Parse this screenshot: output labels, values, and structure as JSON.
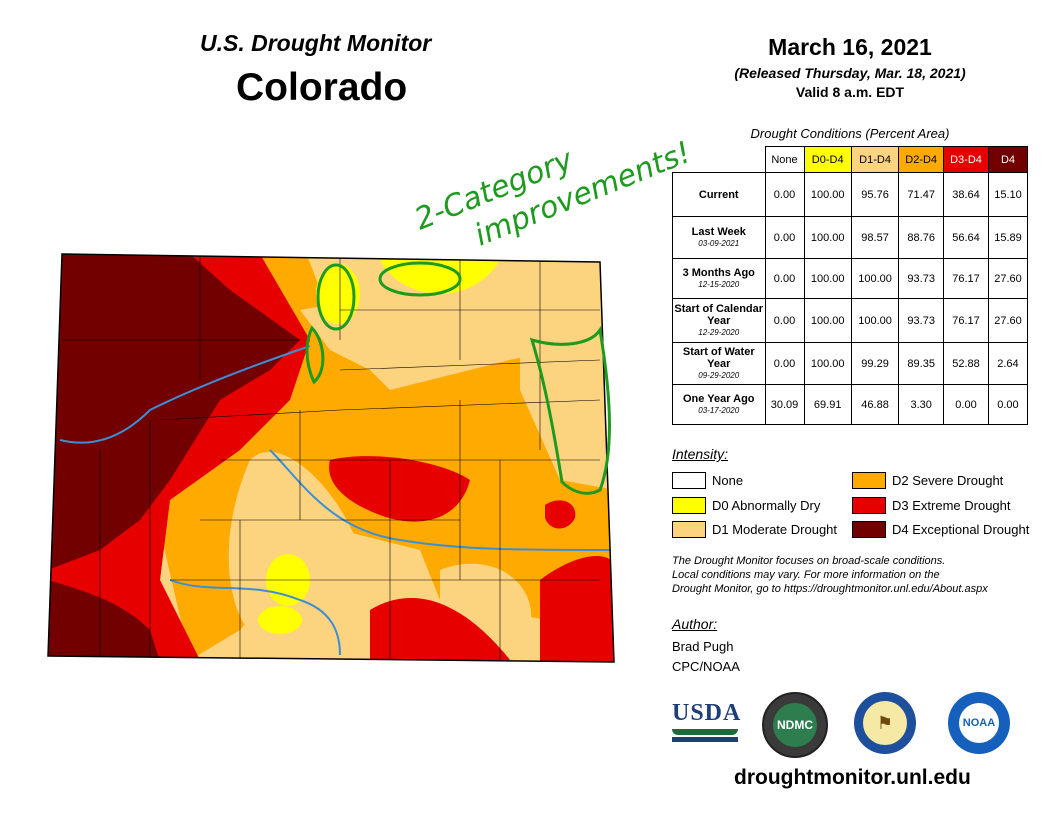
{
  "header": {
    "title": "U.S. Drought Monitor",
    "state": "Colorado",
    "date": "March 16, 2021",
    "released": "(Released Thursday, Mar. 18, 2021)",
    "valid": "Valid 8 a.m. EDT"
  },
  "conditions": {
    "title": "Drought Conditions (Percent Area)",
    "columns": [
      "None",
      "D0-D4",
      "D1-D4",
      "D2-D4",
      "D3-D4",
      "D4"
    ],
    "column_colors": [
      "#ffffff",
      "#ffff00",
      "#fcd37f",
      "#ffaa00",
      "#e60000",
      "#730000"
    ],
    "column_text_colors": [
      "#000000",
      "#000000",
      "#000000",
      "#000000",
      "#ffffff",
      "#ffffff"
    ],
    "rows": [
      {
        "label": "Current",
        "sub": "",
        "values": [
          "0.00",
          "100.00",
          "95.76",
          "71.47",
          "38.64",
          "15.10"
        ]
      },
      {
        "label": "Last Week",
        "sub": "03-09-2021",
        "values": [
          "0.00",
          "100.00",
          "98.57",
          "88.76",
          "56.64",
          "15.89"
        ]
      },
      {
        "label": "3 Months Ago",
        "sub": "12-15-2020",
        "values": [
          "0.00",
          "100.00",
          "100.00",
          "93.73",
          "76.17",
          "27.60"
        ]
      },
      {
        "label": "Start of Calendar Year",
        "sub": "12-29-2020",
        "values": [
          "0.00",
          "100.00",
          "100.00",
          "93.73",
          "76.17",
          "27.60"
        ]
      },
      {
        "label": "Start of Water Year",
        "sub": "09-29-2020",
        "values": [
          "0.00",
          "100.00",
          "99.29",
          "89.35",
          "52.88",
          "2.64"
        ]
      },
      {
        "label": "One Year Ago",
        "sub": "03-17-2020",
        "values": [
          "30.09",
          "69.91",
          "46.88",
          "3.30",
          "0.00",
          "0.00"
        ]
      }
    ]
  },
  "legend": {
    "title": "Intensity:",
    "items": [
      {
        "label": "None",
        "color": "#ffffff"
      },
      {
        "label": "D0 Abnormally Dry",
        "color": "#ffff00"
      },
      {
        "label": "D1 Moderate Drought",
        "color": "#fcd37f"
      },
      {
        "label": "D2 Severe Drought",
        "color": "#ffaa00"
      },
      {
        "label": "D3 Extreme Drought",
        "color": "#e60000"
      },
      {
        "label": "D4 Exceptional Drought",
        "color": "#730000"
      }
    ]
  },
  "note": {
    "line1": "The Drought Monitor focuses on broad-scale conditions.",
    "line2": "Local conditions may vary. For more information on the",
    "line3": "Drought Monitor, go to https://droughtmonitor.unl.edu/About.aspx"
  },
  "author": {
    "heading": "Author:",
    "name": "Brad Pugh",
    "org": "CPC/NOAA"
  },
  "logos": {
    "usda": "USDA",
    "ndmc": "NDMC",
    "noaa": "NOAA"
  },
  "url": "droughtmonitor.unl.edu",
  "annotation": {
    "line1": "2-Category",
    "line2": "improvements!"
  }
}
